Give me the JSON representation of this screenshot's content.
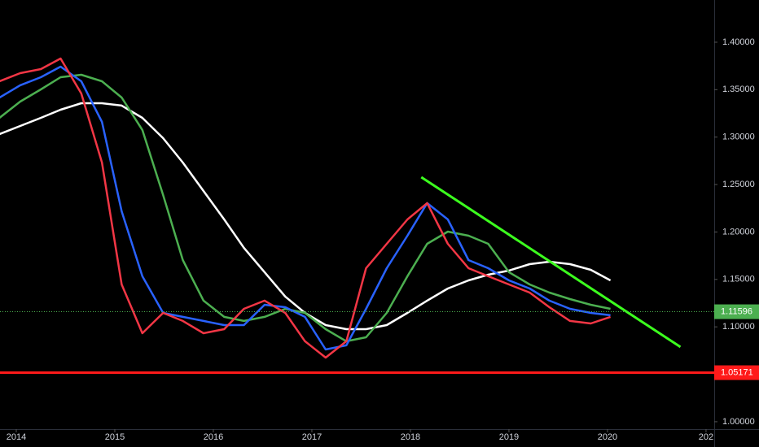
{
  "chart_data": {
    "type": "line",
    "x": [
      2013.83,
      2014.04,
      2014.25,
      2014.45,
      2014.66,
      2014.87,
      2015.07,
      2015.28,
      2015.49,
      2015.69,
      2015.9,
      2016.11,
      2016.31,
      2016.52,
      2016.73,
      2016.93,
      2017.14,
      2017.35,
      2017.55,
      2017.76,
      2017.97,
      2018.17,
      2018.38,
      2018.59,
      2018.79,
      2019.0,
      2019.21,
      2019.41,
      2019.62,
      2019.83,
      2020.03
    ],
    "series": [
      {
        "color": "#ffffff",
        "values": [
          1.3032,
          1.3117,
          1.3203,
          1.3289,
          1.3357,
          1.3357,
          1.3332,
          1.3203,
          1.2989,
          1.2732,
          1.2432,
          1.2132,
          1.1833,
          1.1576,
          1.1319,
          1.1147,
          1.1019,
          1.0976,
          1.0976,
          1.1019,
          1.1147,
          1.1276,
          1.1404,
          1.149,
          1.155,
          1.1593,
          1.1661,
          1.1687,
          1.1661,
          1.1601,
          1.149
        ]
      },
      {
        "color": "#4caf50",
        "values": [
          1.3203,
          1.3374,
          1.3503,
          1.3631,
          1.3657,
          1.3588,
          1.3417,
          1.3075,
          1.2389,
          1.1704,
          1.1276,
          1.1105,
          1.1062,
          1.1105,
          1.119,
          1.1147,
          1.0976,
          1.0848,
          1.089,
          1.1147,
          1.1533,
          1.1875,
          1.2004,
          1.1961,
          1.1875,
          1.1576,
          1.1447,
          1.1361,
          1.1293,
          1.1233,
          1.119
        ]
      },
      {
        "color": "#2962ff",
        "values": [
          1.3417,
          1.3546,
          1.3631,
          1.3743,
          1.3588,
          1.316,
          1.2218,
          1.1533,
          1.1147,
          1.1105,
          1.1062,
          1.1019,
          1.1019,
          1.1233,
          1.1207,
          1.1105,
          1.0762,
          1.0805,
          1.119,
          1.1618,
          1.1961,
          1.2304,
          1.2132,
          1.1704,
          1.1618,
          1.149,
          1.1404,
          1.1276,
          1.119,
          1.1147,
          1.1122
        ]
      },
      {
        "color": "#f23645",
        "values": [
          1.3588,
          1.3674,
          1.3717,
          1.3828,
          1.346,
          1.2732,
          1.1447,
          1.0933,
          1.1147,
          1.1062,
          1.0933,
          1.0976,
          1.119,
          1.1276,
          1.1147,
          1.0848,
          1.0676,
          1.0848,
          1.1618,
          1.1875,
          1.2132,
          1.2304,
          1.1875,
          1.1618,
          1.1533,
          1.1447,
          1.1361,
          1.1207,
          1.1062,
          1.1036,
          1.1105
        ]
      }
    ],
    "levels": [
      {
        "value": 1.05171,
        "color": "#ff1a1a",
        "style": "solid"
      },
      {
        "value": 1.11596,
        "color": "#4caf50",
        "style": "dotted"
      }
    ],
    "trendline": {
      "x": [
        2018.11,
        2020.74
      ],
      "y": [
        1.2578,
        1.0788
      ],
      "color": "#3cff1e"
    },
    "xlim": [
      2013.835,
      2021.083
    ],
    "xticks": [
      2014,
      2015,
      2016,
      2017,
      2018,
      2019,
      2020,
      {
        "value": 2021,
        "label": "202"
      }
    ],
    "ylim": [
      0.9905,
      1.4445
    ],
    "yticks": [
      {
        "value": 1.4,
        "label": "1.40000"
      },
      {
        "value": 1.35,
        "label": "1.35000"
      },
      {
        "value": 1.3,
        "label": "1.30000"
      },
      {
        "value": 1.25,
        "label": "1.25000"
      },
      {
        "value": 1.2,
        "label": "1.20000"
      },
      {
        "value": 1.15,
        "label": "1.15000"
      },
      {
        "value": 1.1,
        "label": "1.10000"
      },
      {
        "value": 1.0,
        "label": "1.00000"
      }
    ]
  }
}
